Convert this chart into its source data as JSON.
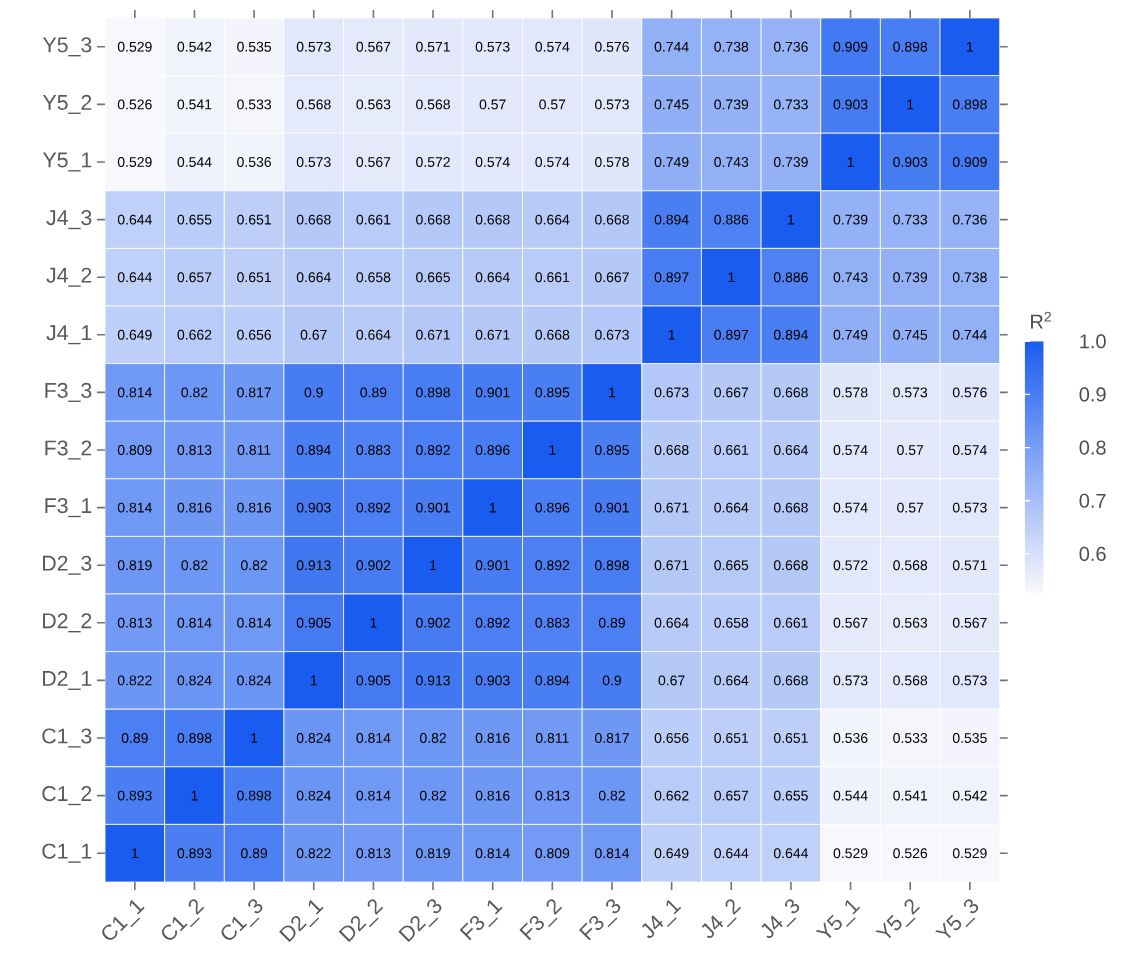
{
  "chart_data": {
    "type": "heatmap",
    "clabel": "R$^{2}$",
    "categories": [
      "C1_1",
      "C1_2",
      "C1_3",
      "D2_1",
      "D2_2",
      "D2_3",
      "F3_1",
      "F3_2",
      "F3_3",
      "J4_1",
      "J4_2",
      "J4_3",
      "Y5_1",
      "Y5_2",
      "Y5_3"
    ],
    "y_categories": [
      "Y5_3",
      "Y5_2",
      "Y5_1",
      "J4_3",
      "J4_2",
      "J4_1",
      "F3_3",
      "F3_2",
      "F3_1",
      "D2_3",
      "D2_2",
      "D2_1",
      "C1_3",
      "C1_2",
      "C1_1"
    ],
    "cells": [
      [
        0.529,
        0.542,
        0.535,
        0.573,
        0.567,
        0.571,
        0.573,
        0.574,
        0.576,
        0.744,
        0.738,
        0.736,
        0.909,
        0.898,
        1
      ],
      [
        0.526,
        0.541,
        0.533,
        0.568,
        0.563,
        0.568,
        0.57,
        0.57,
        0.573,
        0.745,
        0.739,
        0.733,
        0.903,
        1,
        0.898
      ],
      [
        0.529,
        0.544,
        0.536,
        0.573,
        0.567,
        0.572,
        0.574,
        0.574,
        0.578,
        0.749,
        0.743,
        0.739,
        1,
        0.903,
        0.909
      ],
      [
        0.644,
        0.655,
        0.651,
        0.668,
        0.661,
        0.668,
        0.668,
        0.664,
        0.668,
        0.894,
        0.886,
        1,
        0.739,
        0.733,
        0.736
      ],
      [
        0.644,
        0.657,
        0.651,
        0.664,
        0.658,
        0.665,
        0.664,
        0.661,
        0.667,
        0.897,
        1,
        0.886,
        0.743,
        0.739,
        0.738
      ],
      [
        0.649,
        0.662,
        0.656,
        0.67,
        0.664,
        0.671,
        0.671,
        0.668,
        0.673,
        1,
        0.897,
        0.894,
        0.749,
        0.745,
        0.744
      ],
      [
        0.814,
        0.82,
        0.817,
        0.9,
        0.89,
        0.898,
        0.901,
        0.895,
        1,
        0.673,
        0.667,
        0.668,
        0.578,
        0.573,
        0.576
      ],
      [
        0.809,
        0.813,
        0.811,
        0.894,
        0.883,
        0.892,
        0.896,
        1,
        0.895,
        0.668,
        0.661,
        0.664,
        0.574,
        0.57,
        0.574
      ],
      [
        0.814,
        0.816,
        0.816,
        0.903,
        0.892,
        0.901,
        1,
        0.896,
        0.901,
        0.671,
        0.664,
        0.668,
        0.574,
        0.57,
        0.573
      ],
      [
        0.819,
        0.82,
        0.82,
        0.913,
        0.902,
        1,
        0.901,
        0.892,
        0.898,
        0.671,
        0.665,
        0.668,
        0.572,
        0.568,
        0.571
      ],
      [
        0.813,
        0.814,
        0.814,
        0.905,
        1,
        0.902,
        0.892,
        0.883,
        0.89,
        0.664,
        0.658,
        0.661,
        0.567,
        0.563,
        0.567
      ],
      [
        0.822,
        0.824,
        0.824,
        1,
        0.905,
        0.913,
        0.903,
        0.894,
        0.9,
        0.67,
        0.664,
        0.668,
        0.573,
        0.568,
        0.573
      ],
      [
        0.89,
        0.898,
        1,
        0.824,
        0.814,
        0.82,
        0.816,
        0.811,
        0.817,
        0.656,
        0.651,
        0.651,
        0.536,
        0.533,
        0.535
      ],
      [
        0.893,
        1,
        0.898,
        0.824,
        0.814,
        0.82,
        0.816,
        0.813,
        0.82,
        0.662,
        0.657,
        0.655,
        0.544,
        0.541,
        0.542
      ],
      [
        1,
        0.893,
        0.89,
        0.822,
        0.813,
        0.819,
        0.814,
        0.809,
        0.814,
        0.649,
        0.644,
        0.644,
        0.529,
        0.526,
        0.529
      ]
    ],
    "clim": [
      0.526,
      1
    ],
    "cticks": [
      {
        "value": 0.6,
        "label": "0.6"
      },
      {
        "value": 0.7,
        "label": "0.7"
      },
      {
        "value": 0.8,
        "label": "0.8"
      },
      {
        "value": 0.9,
        "label": "0.9"
      },
      {
        "value": 1.0,
        "label": "1.0"
      }
    ],
    "data_labels": true
  }
}
